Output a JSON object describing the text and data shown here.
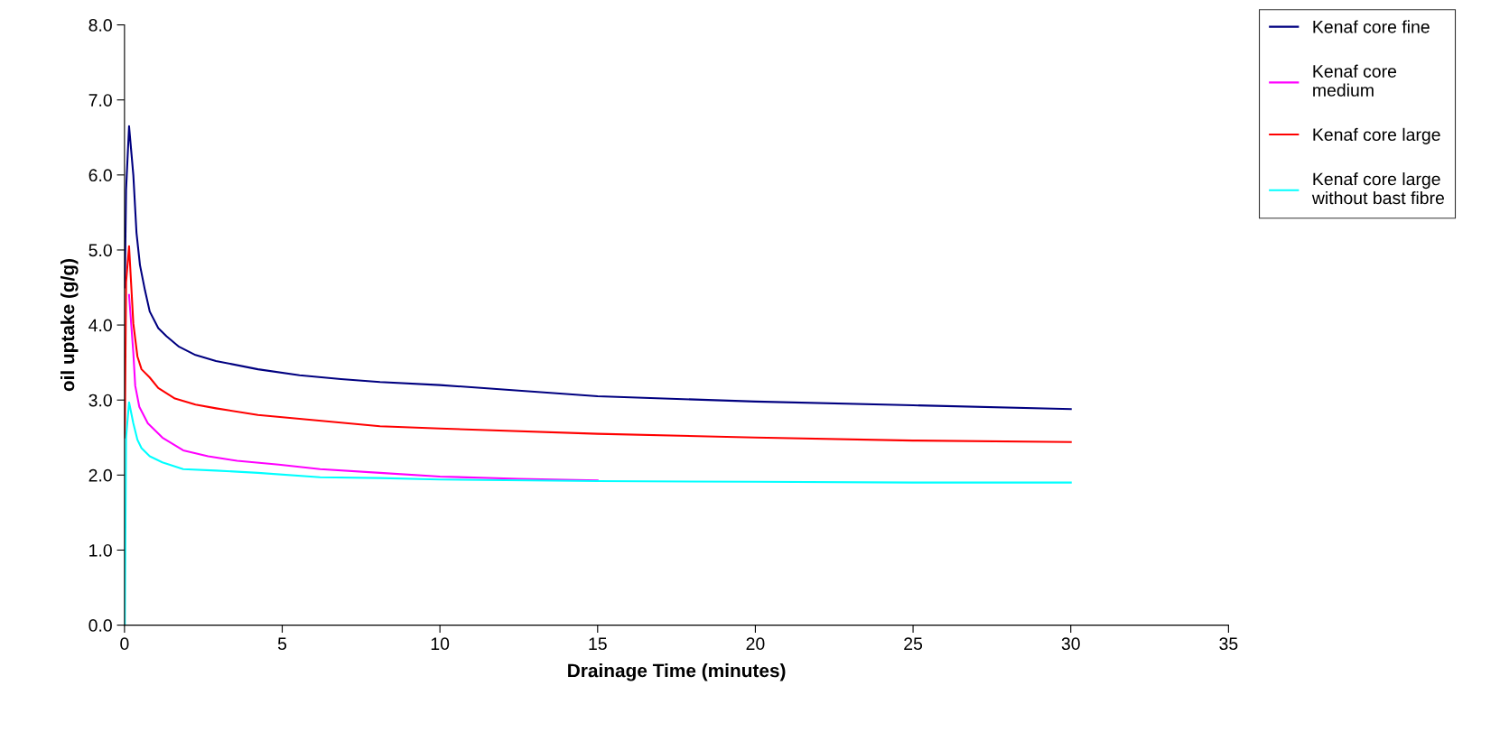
{
  "chart_data": {
    "type": "line",
    "xlabel": "Drainage Time (minutes)",
    "ylabel": "oil uptake (g/g)",
    "xlim": [
      0,
      35
    ],
    "xticks": [
      0,
      5,
      10,
      15,
      20,
      25,
      30,
      35
    ],
    "ylim": [
      0,
      8
    ],
    "yticks": [
      {
        "value": 0,
        "label": "0.0"
      },
      {
        "value": 1,
        "label": "1.0"
      },
      {
        "value": 2,
        "label": "2.0"
      },
      {
        "value": 3,
        "label": "3.0"
      },
      {
        "value": 4,
        "label": "4.0"
      },
      {
        "value": 5,
        "label": "5.0"
      },
      {
        "value": 6,
        "label": "6.0"
      },
      {
        "value": 7,
        "label": "7.0"
      },
      {
        "value": 8,
        "label": "8.0"
      }
    ],
    "grid": false,
    "legend": "right",
    "marker": "none",
    "line_style": "solid",
    "series": [
      {
        "name": "Kenaf core fine",
        "color": "#000080",
        "x": [
          0.01,
          0.05,
          0.145,
          0.28,
          0.38,
          0.49,
          0.65,
          0.8,
          1.07,
          1.33,
          1.73,
          2.25,
          2.9,
          4.23,
          5.55,
          6.86,
          8.1,
          10,
          15,
          20,
          25,
          30
        ],
        "values": [
          4.5,
          5.8,
          6.65,
          6.0,
          5.23,
          4.8,
          4.46,
          4.18,
          3.96,
          3.85,
          3.71,
          3.6,
          3.52,
          3.41,
          3.33,
          3.28,
          3.24,
          3.2,
          3.05,
          2.98,
          2.93,
          2.88
        ]
      },
      {
        "name": "Kenaf core\nmedium",
        "color": "#ff00ff",
        "x": [
          0.145,
          0.28,
          0.34,
          0.47,
          0.74,
          1.2,
          1.86,
          2.65,
          3.57,
          4.89,
          6.2,
          8.1,
          10,
          12.5,
          15
        ],
        "values": [
          4.4,
          3.63,
          3.19,
          2.91,
          2.69,
          2.5,
          2.33,
          2.25,
          2.19,
          2.14,
          2.08,
          2.03,
          1.98,
          1.95,
          1.93
        ]
      },
      {
        "name": "Kenaf core large",
        "color": "#ff0000",
        "x": [
          0.01,
          0.05,
          0.145,
          0.28,
          0.41,
          0.54,
          0.8,
          1.07,
          1.6,
          2.25,
          2.9,
          4.23,
          5.55,
          8.1,
          10,
          15,
          20,
          25,
          30
        ],
        "values": [
          2.5,
          4.57,
          5.05,
          4.02,
          3.58,
          3.41,
          3.3,
          3.16,
          3.02,
          2.94,
          2.89,
          2.8,
          2.75,
          2.65,
          2.62,
          2.55,
          2.5,
          2.46,
          2.44
        ]
      },
      {
        "name": "Kenaf core large\nwithout bast fibre",
        "color": "#00ffff",
        "x": [
          0.01,
          0.05,
          0.145,
          0.28,
          0.41,
          0.54,
          0.8,
          1.2,
          1.86,
          2.9,
          4.23,
          6.2,
          8.1,
          10,
          15,
          20,
          25,
          30
        ],
        "values": [
          0,
          2.5,
          2.97,
          2.69,
          2.47,
          2.36,
          2.25,
          2.17,
          2.08,
          2.06,
          2.03,
          1.97,
          1.96,
          1.94,
          1.92,
          1.91,
          1.9,
          1.9
        ]
      }
    ]
  }
}
